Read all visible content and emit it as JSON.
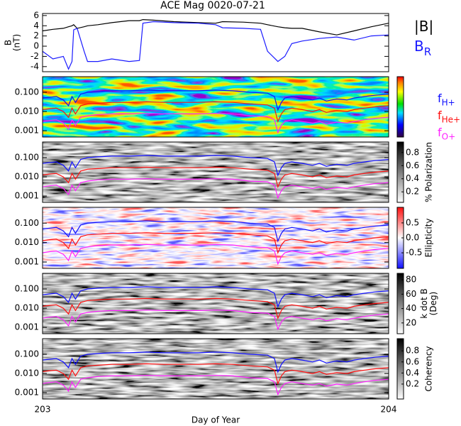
{
  "chart_data": [
    {
      "type": "line",
      "title": "ACE Mag 0020-07-21",
      "ylabel": [
        "B",
        "(nT)"
      ],
      "xlim": [
        203,
        204
      ],
      "ylim": [
        -5,
        6.4
      ],
      "yticks": [
        6,
        4,
        2,
        0,
        -2,
        -4
      ],
      "x": [
        203.0,
        203.03,
        203.06,
        203.075,
        203.085,
        203.09,
        203.1,
        203.12,
        203.13,
        203.16,
        203.2,
        203.25,
        203.28,
        203.29,
        203.32,
        203.38,
        203.45,
        203.5,
        203.52,
        203.58,
        203.63,
        203.65,
        203.68,
        203.7,
        203.72,
        203.75,
        203.8,
        203.85,
        203.9,
        203.95,
        204.0
      ],
      "series": [
        {
          "name": "|B|",
          "color": "#000000",
          "values": [
            3,
            3.3,
            3.5,
            3.8,
            4,
            4.2,
            3.5,
            3.8,
            4,
            4.2,
            4.6,
            5,
            5,
            5.2,
            5.1,
            4.8,
            4.6,
            4.5,
            4.8,
            4.7,
            4.5,
            4.2,
            3.8,
            3.6,
            3.5,
            3.5,
            2.8,
            2.2,
            3,
            3.8,
            4.5
          ]
        },
        {
          "name": "B",
          "subscript": "R",
          "color": "#1a1aff",
          "values": [
            -1,
            -2.5,
            -2,
            -4.5,
            -3,
            3.2,
            3.5,
            -1,
            -3,
            -3,
            -2.5,
            -3,
            -2.8,
            4.5,
            4.8,
            4.6,
            4.5,
            4.2,
            3.6,
            3.5,
            3.3,
            -1,
            -3,
            -2,
            0.5,
            1,
            1.5,
            1.8,
            1.2,
            2,
            2.2
          ]
        }
      ]
    },
    {
      "type": "spectrogram",
      "colormap": "rainbow",
      "log_y": true,
      "xlim": [
        203,
        204
      ],
      "ylim": [
        0.00047,
        0.65
      ],
      "yticks": [
        {
          "value": 0.1,
          "label": "0.100"
        },
        {
          "value": 0.01,
          "label": "0.010"
        },
        {
          "value": 0.001,
          "label": "0.001"
        }
      ],
      "x": [
        203.0,
        203.02,
        203.04,
        203.06,
        203.075,
        203.085,
        203.095,
        203.11,
        203.13,
        203.16,
        203.2,
        203.25,
        203.3,
        203.35,
        203.4,
        203.45,
        203.5,
        203.55,
        203.6,
        203.65,
        203.67,
        203.68,
        203.69,
        203.7,
        203.72,
        203.75,
        203.78,
        203.8,
        203.82,
        203.85,
        203.88,
        203.9,
        203.93,
        203.96,
        204.0
      ],
      "series": [
        {
          "name": "f",
          "subscript": "H+",
          "color": "#1010ff",
          "values": [
            0.05,
            0.055,
            0.06,
            0.04,
            0.02,
            0.06,
            0.03,
            0.08,
            0.1,
            0.11,
            0.12,
            0.12,
            0.13,
            0.12,
            0.12,
            0.12,
            0.13,
            0.12,
            0.1,
            0.09,
            0.06,
            0.012,
            0.03,
            0.05,
            0.06,
            0.05,
            0.04,
            0.05,
            0.035,
            0.045,
            0.04,
            0.05,
            0.06,
            0.07,
            0.08
          ]
        },
        {
          "name": "f",
          "subscript": "He+",
          "color": "#ff1010",
          "values": [
            0.0125,
            0.014,
            0.015,
            0.01,
            0.005,
            0.015,
            0.0075,
            0.02,
            0.025,
            0.027,
            0.03,
            0.03,
            0.032,
            0.03,
            0.03,
            0.03,
            0.032,
            0.03,
            0.025,
            0.022,
            0.015,
            0.003,
            0.0075,
            0.0125,
            0.015,
            0.0125,
            0.01,
            0.0125,
            0.009,
            0.011,
            0.01,
            0.0125,
            0.015,
            0.0175,
            0.02
          ]
        },
        {
          "name": "f",
          "subscript": "O+",
          "color": "#ff20ff",
          "values": [
            0.003,
            0.0034,
            0.0037,
            0.0025,
            0.0012,
            0.0037,
            0.0019,
            0.005,
            0.006,
            0.007,
            0.0075,
            0.0075,
            0.008,
            0.0075,
            0.0075,
            0.0075,
            0.008,
            0.0075,
            0.006,
            0.0055,
            0.0037,
            0.0008,
            0.0019,
            0.003,
            0.0037,
            0.003,
            0.0025,
            0.003,
            0.0022,
            0.0028,
            0.0025,
            0.003,
            0.0037,
            0.0044,
            0.005
          ]
        }
      ]
    },
    {
      "type": "spectrogram",
      "colormap": "gray",
      "log_y": true,
      "xlim": [
        203,
        204
      ],
      "ylim": [
        0.00047,
        0.65
      ],
      "yticks": [
        {
          "value": 0.1,
          "label": "0.100"
        },
        {
          "value": 0.01,
          "label": "0.010"
        },
        {
          "value": 0.001,
          "label": "0.001"
        }
      ],
      "clim": [
        0.04,
        0.96
      ],
      "cticks": [
        0.8,
        0.6,
        0.4,
        0.2
      ],
      "colorbar_label": [
        "% Polarization"
      ]
    },
    {
      "type": "spectrogram",
      "colormap": "bwr",
      "log_y": true,
      "xlim": [
        203,
        204
      ],
      "ylim": [
        0.00047,
        0.65
      ],
      "yticks": [
        {
          "value": 0.1,
          "label": "0.100"
        },
        {
          "value": 0.01,
          "label": "0.010"
        },
        {
          "value": 0.001,
          "label": "0.001"
        }
      ],
      "clim": [
        -1.02,
        1.02
      ],
      "cticks": [
        0.5,
        {
          "value": 0,
          "label": "0.0"
        },
        -0.5
      ],
      "colorbar_label": [
        "Ellipticity"
      ]
    },
    {
      "type": "spectrogram",
      "colormap": "gray",
      "log_y": true,
      "xlim": [
        203,
        204
      ],
      "ylim": [
        0.00047,
        0.65
      ],
      "yticks": [
        {
          "value": 0.1,
          "label": "0.100"
        },
        {
          "value": 0.01,
          "label": "0.010"
        },
        {
          "value": 0.001,
          "label": "0.001"
        }
      ],
      "clim": [
        5,
        89
      ],
      "cticks": [
        80,
        60,
        40,
        20
      ],
      "colorbar_label": [
        "k dot B",
        "(Deg)"
      ]
    },
    {
      "type": "spectrogram",
      "colormap": "gray",
      "log_y": true,
      "xlim": [
        203,
        204
      ],
      "ylim": [
        0.00047,
        0.65
      ],
      "yticks": [
        {
          "value": 0.1,
          "label": "0.100"
        },
        {
          "value": 0.01,
          "label": "0.010"
        },
        {
          "value": 0.001,
          "label": "0.001"
        }
      ],
      "clim": [
        -0.07,
        1.02
      ],
      "cticks": [
        0.8,
        0.6,
        0.4,
        0.2
      ],
      "colorbar_label": [
        "Coherency"
      ],
      "xticks": [
        203,
        204
      ],
      "xlabel": "Day of Year"
    }
  ]
}
